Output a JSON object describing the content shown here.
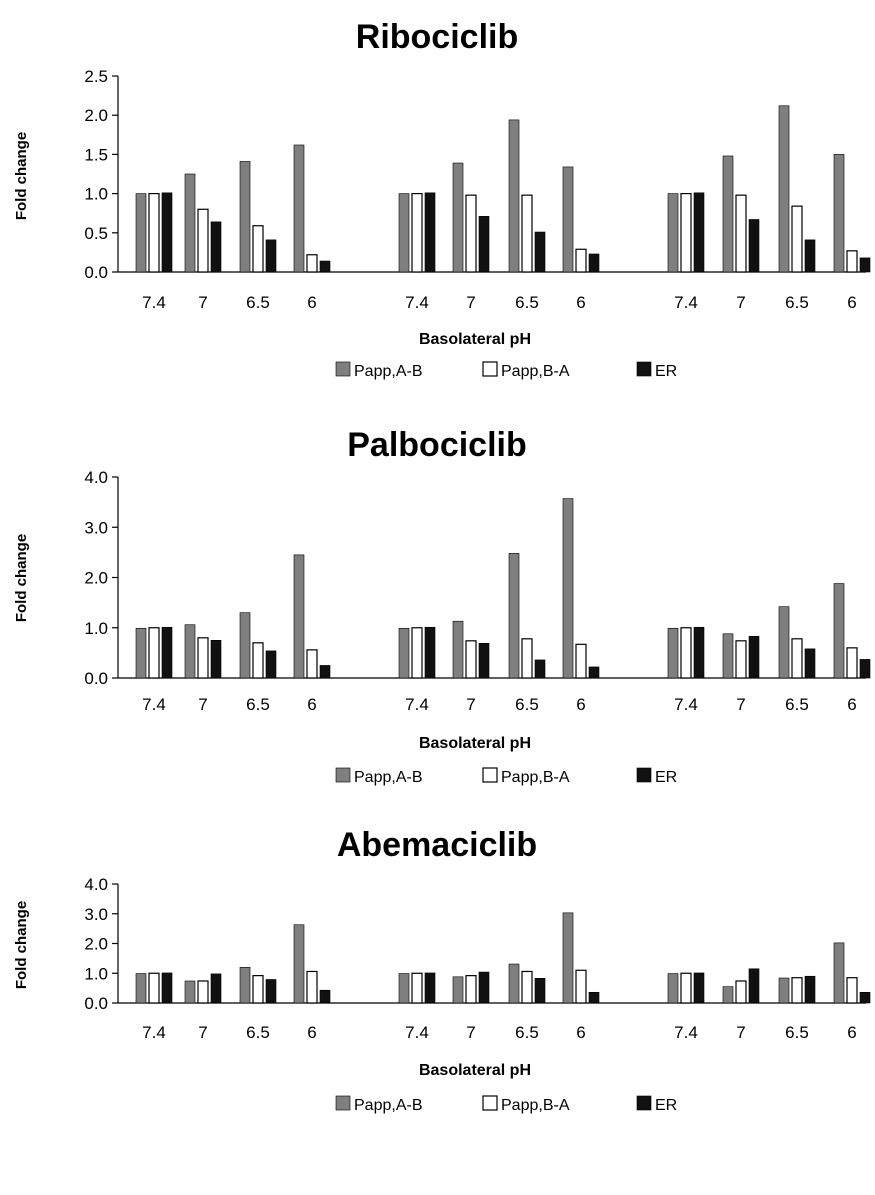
{
  "chart_data": [
    {
      "type": "bar",
      "title": "Ribociclib",
      "xlabel": "Basolateral pH",
      "ylabel": "Fold change",
      "ylim": [
        0,
        2.5
      ],
      "yticks": [
        "0.0",
        "0.5",
        "1.0",
        "1.5",
        "2.0",
        "2.5"
      ],
      "categories": [
        "7.4",
        "7",
        "6.5",
        "6",
        "7.4",
        "7",
        "6.5",
        "6",
        "7.4",
        "7",
        "6.5",
        "6"
      ],
      "grid": false,
      "legend_position": "bottom",
      "series": [
        {
          "name": "Papp,A-B",
          "color": "#7f7f7f",
          "values": [
            1.0,
            1.25,
            1.41,
            1.62,
            1.0,
            1.39,
            1.94,
            1.34,
            1.0,
            1.48,
            2.12,
            1.5
          ]
        },
        {
          "name": "Papp,B-A",
          "color": "#ffffff",
          "values": [
            1.0,
            0.8,
            0.59,
            0.22,
            1.0,
            0.98,
            0.98,
            0.29,
            1.0,
            0.98,
            0.84,
            0.27
          ]
        },
        {
          "name": "ER",
          "color": "#111111",
          "values": [
            1.01,
            0.64,
            0.41,
            0.14,
            1.01,
            0.71,
            0.51,
            0.23,
            1.01,
            0.67,
            0.41,
            0.18
          ]
        }
      ]
    },
    {
      "type": "bar",
      "title": "Palbociclib",
      "xlabel": "Basolateral pH",
      "ylabel": "Fold change",
      "ylim": [
        0,
        4.0
      ],
      "yticks": [
        "0.0",
        "1.0",
        "2.0",
        "3.0",
        "4.0"
      ],
      "categories": [
        "7.4",
        "7",
        "6.5",
        "6",
        "7.4",
        "7",
        "6.5",
        "6",
        "7.4",
        "7",
        "6.5",
        "6"
      ],
      "grid": false,
      "legend_position": "bottom",
      "series": [
        {
          "name": "Papp,A-B",
          "color": "#7f7f7f",
          "values": [
            0.99,
            1.06,
            1.3,
            2.45,
            0.99,
            1.13,
            2.48,
            3.57,
            0.99,
            0.88,
            1.42,
            1.88
          ]
        },
        {
          "name": "Papp,B-A",
          "color": "#ffffff",
          "values": [
            1.0,
            0.8,
            0.7,
            0.56,
            1.0,
            0.74,
            0.78,
            0.67,
            1.0,
            0.74,
            0.78,
            0.6
          ]
        },
        {
          "name": "ER",
          "color": "#111111",
          "values": [
            1.01,
            0.75,
            0.54,
            0.25,
            1.01,
            0.69,
            0.36,
            0.22,
            1.01,
            0.83,
            0.58,
            0.37
          ]
        }
      ]
    },
    {
      "type": "bar",
      "title": "Abemaciclib",
      "xlabel": "Basolateral pH",
      "ylabel": "Fold change",
      "ylim": [
        0,
        4.0
      ],
      "yticks": [
        "0.0",
        "1.0",
        "2.0",
        "3.0",
        "4.0"
      ],
      "categories": [
        "7.4",
        "7",
        "6.5",
        "6",
        "7.4",
        "7",
        "6.5",
        "6",
        "7.4",
        "7",
        "6.5",
        "6"
      ],
      "grid": false,
      "legend_position": "bottom",
      "series": [
        {
          "name": "Papp,A-B",
          "color": "#7f7f7f",
          "values": [
            0.99,
            0.74,
            1.2,
            2.63,
            0.99,
            0.88,
            1.31,
            3.03,
            0.99,
            0.55,
            0.84,
            2.02
          ]
        },
        {
          "name": "Papp,B-A",
          "color": "#ffffff",
          "values": [
            1.0,
            0.74,
            0.92,
            1.06,
            1.0,
            0.92,
            1.06,
            1.1,
            1.0,
            0.74,
            0.85,
            0.85
          ]
        },
        {
          "name": "ER",
          "color": "#111111",
          "values": [
            1.01,
            0.98,
            0.79,
            0.43,
            1.01,
            1.04,
            0.83,
            0.36,
            1.01,
            1.15,
            0.9,
            0.36
          ]
        }
      ]
    }
  ]
}
